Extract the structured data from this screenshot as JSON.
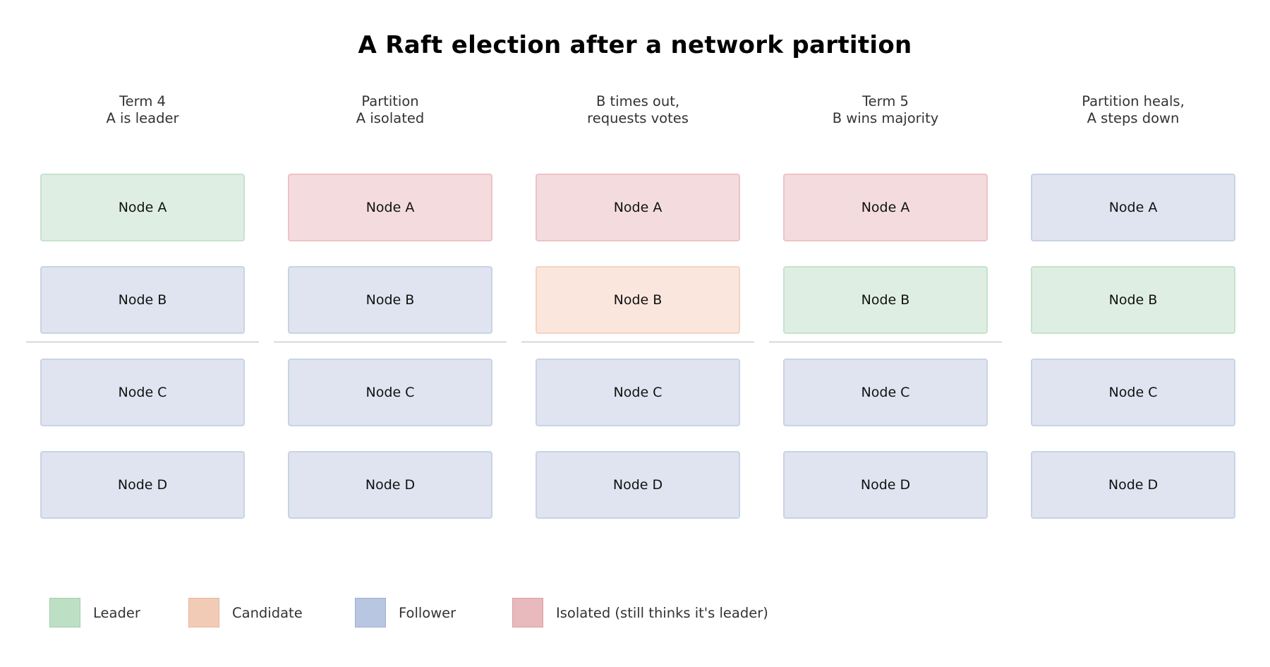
{
  "title": "A Raft election after a network partition",
  "stages": [
    {
      "label_lines": [
        "Term 4",
        "A is leader"
      ],
      "partition_line": true,
      "nodes": [
        {
          "label": "Node A",
          "role": "leader"
        },
        {
          "label": "Node B",
          "role": "follower"
        },
        {
          "label": "Node C",
          "role": "follower"
        },
        {
          "label": "Node D",
          "role": "follower"
        }
      ]
    },
    {
      "label_lines": [
        "Partition",
        "A isolated"
      ],
      "partition_line": true,
      "nodes": [
        {
          "label": "Node A",
          "role": "isolated"
        },
        {
          "label": "Node B",
          "role": "follower"
        },
        {
          "label": "Node C",
          "role": "follower"
        },
        {
          "label": "Node D",
          "role": "follower"
        }
      ]
    },
    {
      "label_lines": [
        "B times out,",
        "requests votes"
      ],
      "partition_line": true,
      "nodes": [
        {
          "label": "Node A",
          "role": "isolated"
        },
        {
          "label": "Node B",
          "role": "candidate"
        },
        {
          "label": "Node C",
          "role": "follower"
        },
        {
          "label": "Node D",
          "role": "follower"
        }
      ]
    },
    {
      "label_lines": [
        "Term 5",
        "B wins majority"
      ],
      "partition_line": true,
      "nodes": [
        {
          "label": "Node A",
          "role": "isolated"
        },
        {
          "label": "Node B",
          "role": "leader"
        },
        {
          "label": "Node C",
          "role": "follower"
        },
        {
          "label": "Node D",
          "role": "follower"
        }
      ]
    },
    {
      "label_lines": [
        "Partition heals,",
        "A steps down"
      ],
      "partition_line": false,
      "nodes": [
        {
          "label": "Node A",
          "role": "follower"
        },
        {
          "label": "Node B",
          "role": "leader"
        },
        {
          "label": "Node C",
          "role": "follower"
        },
        {
          "label": "Node D",
          "role": "follower"
        }
      ]
    }
  ],
  "legend": [
    {
      "role": "leader",
      "label": "Leader"
    },
    {
      "role": "candidate",
      "label": "Candidate"
    },
    {
      "role": "follower",
      "label": "Follower"
    },
    {
      "role": "isolated",
      "label": "Isolated (still thinks it's leader)"
    }
  ],
  "colors": {
    "leader": "#bddfc3",
    "candidate": "#f2cbb7",
    "follower": "#b8c6e1",
    "isolated": "#e8b9bd"
  }
}
